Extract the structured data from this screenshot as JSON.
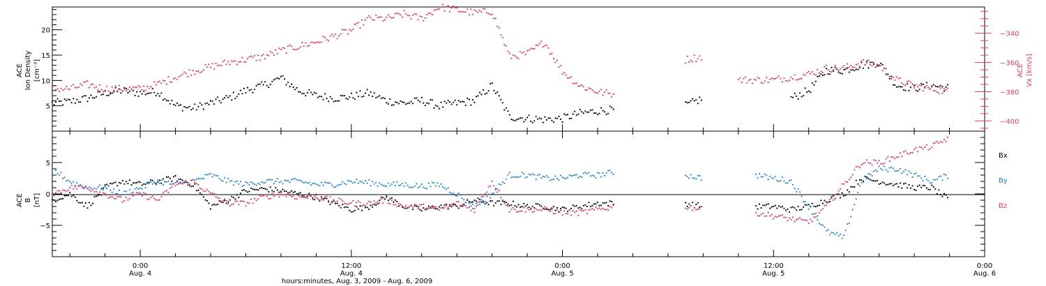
{
  "chart_data": [
    {
      "type": "scatter",
      "panel": "top",
      "ylabel_lines": [
        "ACE",
        "Ion Density",
        "[cm⁻³]"
      ],
      "y2label_lines": [
        "ACE",
        "Vx [km/s]"
      ],
      "yticks": [
        5,
        10,
        15,
        20
      ],
      "ylim": [
        0,
        24.5
      ],
      "y2ticks": [
        -400,
        -380,
        -360,
        -340
      ],
      "y2lim": [
        -407,
        -322
      ],
      "xlim": [
        -5,
        48
      ],
      "series": [
        {
          "quantity": "Ion Density",
          "color": "#000000",
          "axis": "left",
          "x": [
            -5,
            -4,
            -3,
            -2,
            -1,
            0,
            1,
            2,
            3,
            4,
            5,
            6,
            7,
            8,
            9,
            10,
            11,
            12,
            13,
            14,
            15,
            16,
            17,
            18,
            19,
            20,
            21,
            22,
            23,
            24,
            25,
            26,
            27,
            28,
            29,
            30,
            31,
            32,
            33,
            34,
            35,
            36,
            37,
            38,
            39,
            40,
            41,
            42,
            43,
            44,
            45,
            46,
            47,
            48
          ],
          "values": [
            5.5,
            5.8,
            6.5,
            7.5,
            8,
            7.5,
            7.8,
            5,
            4.5,
            5.5,
            6.5,
            8,
            9,
            10.5,
            8,
            7,
            6.5,
            6.8,
            7.5,
            6,
            5.5,
            6,
            5,
            5.5,
            6,
            9,
            2.8,
            2.5,
            2.3,
            2.5,
            3.5,
            4,
            4.2,
            null,
            null,
            null,
            5,
            6.5,
            null,
            null,
            null,
            null,
            6.5,
            8,
            12,
            12,
            13,
            13.5,
            9,
            8.5,
            9,
            8.5,
            null,
            null
          ]
        },
        {
          "quantity": "Vx",
          "color": "#e8356a",
          "axis": "right",
          "x": [
            -5,
            -4,
            -3,
            -2,
            -1,
            0,
            1,
            2,
            3,
            4,
            5,
            6,
            7,
            8,
            9,
            10,
            11,
            12,
            13,
            14,
            15,
            16,
            17,
            18,
            19,
            20,
            21,
            22,
            23,
            24,
            25,
            26,
            27,
            28,
            29,
            30,
            31,
            32,
            33,
            34,
            35,
            36,
            37,
            38,
            39,
            40,
            41,
            42,
            43,
            44,
            45,
            46,
            47,
            48
          ],
          "values": [
            -378,
            -378,
            -375,
            -378,
            -378,
            -378,
            -375,
            -370,
            -366,
            -363,
            -360,
            -358,
            -356,
            -352,
            -349,
            -346,
            -342,
            -338,
            -330,
            -330,
            -327,
            -330,
            -322,
            -324,
            -326,
            -325,
            -356,
            -354,
            -346,
            -366,
            -376,
            -380,
            -382,
            null,
            null,
            null,
            -358,
            -356,
            null,
            -372,
            -372,
            -372,
            -370,
            -368,
            -364,
            -364,
            -360,
            -362,
            -372,
            -376,
            -378,
            -380,
            null,
            null
          ]
        }
      ]
    },
    {
      "type": "scatter",
      "panel": "bottom",
      "ylabel_lines": [
        "ACE",
        "B",
        "[nT]"
      ],
      "yticks": [
        -5,
        0,
        5
      ],
      "ylim": [
        -10,
        10
      ],
      "xlim": [
        -5,
        48
      ],
      "zero_line": true,
      "legend": [
        "Bx",
        "By",
        "Bz"
      ],
      "series": [
        {
          "name": "Bx",
          "color": "#000000",
          "x": [
            -5,
            -4,
            -3,
            -2,
            -1,
            0,
            1,
            2,
            3,
            4,
            5,
            6,
            7,
            8,
            9,
            10,
            11,
            12,
            13,
            14,
            15,
            16,
            17,
            18,
            19,
            20,
            21,
            22,
            23,
            24,
            25,
            26,
            27,
            28,
            29,
            30,
            31,
            32,
            33,
            34,
            35,
            36,
            37,
            38,
            39,
            40,
            41,
            42,
            43,
            44,
            45,
            46,
            47,
            48
          ],
          "values": [
            -1,
            0,
            -2,
            1,
            2,
            1.5,
            2,
            2.5,
            1.5,
            -2,
            -1,
            0.5,
            0.8,
            0.5,
            0,
            -0.5,
            -1.5,
            -2.5,
            -2,
            -0.5,
            -2,
            -2.5,
            -2,
            -2,
            -1,
            -1.5,
            -1.5,
            -2,
            -2,
            -2.5,
            -2,
            -1.5,
            -1.5,
            null,
            null,
            null,
            -1.5,
            -2,
            null,
            null,
            -2,
            -2,
            -2.5,
            -2,
            -1,
            0,
            2.5,
            2,
            1.5,
            1,
            1,
            -1,
            null,
            null
          ]
        },
        {
          "name": "By",
          "color": "#1f84db",
          "x": [
            -5,
            -4,
            -3,
            -2,
            -1,
            0,
            1,
            2,
            3,
            4,
            5,
            6,
            7,
            8,
            9,
            10,
            11,
            12,
            13,
            14,
            15,
            16,
            17,
            18,
            19,
            20,
            21,
            22,
            23,
            24,
            25,
            26,
            27,
            28,
            29,
            30,
            31,
            32,
            33,
            34,
            35,
            36,
            37,
            38,
            39,
            40,
            41,
            42,
            43,
            44,
            45,
            46,
            47,
            48
          ],
          "values": [
            4,
            2,
            1,
            1,
            0,
            1,
            2,
            1.5,
            2,
            3,
            2,
            1.5,
            2,
            2,
            2,
            1.5,
            1.5,
            2,
            1.8,
            1.5,
            1.5,
            1.2,
            1.5,
            0,
            -2,
            0,
            3,
            3,
            2.5,
            2.5,
            3,
            3,
            3.5,
            null,
            null,
            null,
            3,
            2.5,
            null,
            null,
            3,
            2.5,
            2,
            -2,
            -6,
            -7,
            2,
            4,
            4,
            3,
            2,
            3,
            null,
            null
          ]
        },
        {
          "name": "Bz",
          "color": "#e8356a",
          "x": [
            -5,
            -4,
            -3,
            -2,
            -1,
            0,
            1,
            2,
            3,
            4,
            5,
            6,
            7,
            8,
            9,
            10,
            11,
            12,
            13,
            14,
            15,
            16,
            17,
            18,
            19,
            20,
            21,
            22,
            23,
            24,
            25,
            26,
            27,
            28,
            29,
            30,
            31,
            32,
            33,
            34,
            35,
            36,
            37,
            38,
            39,
            40,
            41,
            42,
            43,
            44,
            45,
            46,
            47,
            48
          ],
          "values": [
            0,
            1,
            1,
            0,
            -1,
            0,
            -1,
            1.5,
            2,
            0,
            -1.5,
            -1.5,
            -0.5,
            0,
            -0.5,
            -0.5,
            -1,
            -1.5,
            -1.5,
            -1,
            -2,
            -2,
            -2.5,
            -1.5,
            -2.5,
            2,
            -2.5,
            -2.5,
            -2.5,
            -3,
            -3,
            -2.5,
            -2,
            null,
            null,
            null,
            -2,
            -2.5,
            null,
            null,
            -3,
            -3.5,
            -4,
            -4.5,
            -2,
            1.5,
            5,
            5,
            6,
            7,
            7.5,
            9,
            null,
            null
          ]
        }
      ]
    }
  ],
  "xaxis": {
    "ticks": [
      {
        "hour": 0,
        "time": "0:00",
        "date": "Aug. 4"
      },
      {
        "hour": 12,
        "time": "12:00",
        "date": "Aug. 4"
      },
      {
        "hour": 24,
        "time": "0:00",
        "date": "Aug. 5"
      },
      {
        "hour": 36,
        "time": "12:00",
        "date": "Aug. 5"
      },
      {
        "hour": 48,
        "time": "0:00",
        "date": "Aug. 6"
      }
    ],
    "label": "hours:minutes, Aug.  3, 2009 - Aug.  6, 2009"
  }
}
